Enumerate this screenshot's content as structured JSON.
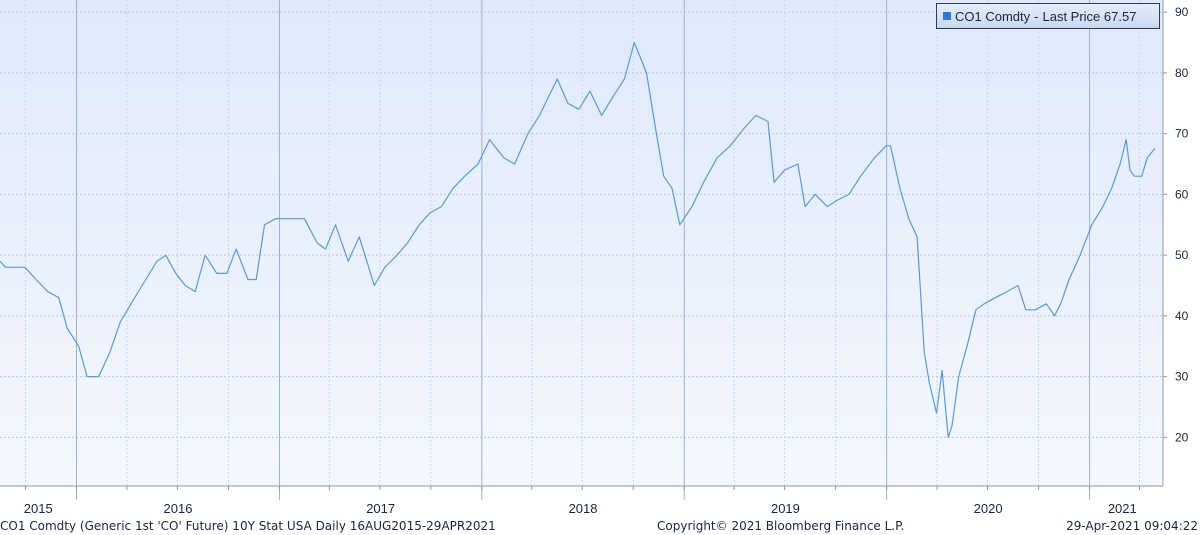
{
  "legend": {
    "series": "CO1 Comdty",
    "sep": "-",
    "label": "Last Price",
    "value": "67.57",
    "color": "#2f76d8"
  },
  "footer": {
    "left": "CO1 Comdty (Generic 1st 'CO' Future) 10Y Stat USA  Daily 16AUG2015-29APR2021",
    "center": "Copyright© 2021 Bloomberg Finance L.P.",
    "right": "29-Apr-2021 09:04:22"
  },
  "chart_data": {
    "type": "line",
    "title": "",
    "xlabel": "",
    "ylabel": "",
    "x_range": [
      "2015-08-16",
      "2021-04-29"
    ],
    "ylim": [
      12,
      92
    ],
    "y_ticks": [
      20,
      30,
      40,
      50,
      60,
      70,
      80,
      90
    ],
    "x_tick_labels": [
      "2015",
      "2016",
      "2017",
      "2018",
      "2019",
      "2020",
      "2021"
    ],
    "grid": true,
    "legend_position": "top-right",
    "line_color": "#5b9bd5",
    "series": [
      {
        "name": "CO1 Comdty - Last Price",
        "x": [
          "2015-08-16",
          "2015-08-26",
          "2015-09-10",
          "2015-09-30",
          "2015-10-20",
          "2015-11-10",
          "2015-11-30",
          "2015-12-15",
          "2016-01-05",
          "2016-01-20",
          "2016-02-10",
          "2016-03-01",
          "2016-03-20",
          "2016-04-15",
          "2016-05-05",
          "2016-05-25",
          "2016-06-10",
          "2016-06-28",
          "2016-07-15",
          "2016-08-02",
          "2016-08-20",
          "2016-09-10",
          "2016-09-28",
          "2016-10-15",
          "2016-11-05",
          "2016-11-20",
          "2016-12-05",
          "2016-12-25",
          "2017-01-20",
          "2017-02-15",
          "2017-03-10",
          "2017-03-25",
          "2017-04-12",
          "2017-05-05",
          "2017-05-25",
          "2017-06-21",
          "2017-07-10",
          "2017-08-01",
          "2017-08-20",
          "2017-09-10",
          "2017-09-30",
          "2017-10-20",
          "2017-11-10",
          "2017-12-01",
          "2017-12-25",
          "2018-01-15",
          "2018-02-10",
          "2018-03-01",
          "2018-03-25",
          "2018-04-15",
          "2018-05-17",
          "2018-06-05",
          "2018-06-25",
          "2018-07-15",
          "2018-08-05",
          "2018-08-25",
          "2018-09-15",
          "2018-10-03",
          "2018-10-25",
          "2018-11-10",
          "2018-11-25",
          "2018-12-10",
          "2018-12-24",
          "2019-01-15",
          "2019-02-05",
          "2019-03-01",
          "2019-03-25",
          "2019-04-20",
          "2019-05-10",
          "2019-06-01",
          "2019-06-12",
          "2019-07-01",
          "2019-07-25",
          "2019-08-07",
          "2019-08-25",
          "2019-09-16",
          "2019-10-03",
          "2019-10-25",
          "2019-11-15",
          "2019-12-10",
          "2019-12-31",
          "2020-01-08",
          "2020-01-25",
          "2020-02-10",
          "2020-02-25",
          "2020-03-09",
          "2020-03-18",
          "2020-03-31",
          "2020-04-10",
          "2020-04-21",
          "2020-04-28",
          "2020-05-10",
          "2020-05-25",
          "2020-06-10",
          "2020-06-25",
          "2020-07-15",
          "2020-08-05",
          "2020-08-25",
          "2020-09-08",
          "2020-09-25",
          "2020-10-15",
          "2020-10-30",
          "2020-11-10",
          "2020-11-25",
          "2020-12-15",
          "2021-01-05",
          "2021-01-25",
          "2021-02-10",
          "2021-02-25",
          "2021-03-08",
          "2021-03-15",
          "2021-03-23",
          "2021-04-05",
          "2021-04-15",
          "2021-04-29"
        ],
        "y": [
          49,
          48,
          48,
          48,
          46,
          44,
          43,
          38,
          35,
          30,
          30,
          34,
          39,
          43,
          46,
          49,
          50,
          47,
          45,
          44,
          50,
          47,
          47,
          51,
          46,
          46,
          55,
          56,
          56,
          56,
          52,
          51,
          55,
          49,
          53,
          45,
          48,
          50,
          52,
          55,
          57,
          58,
          61,
          63,
          65,
          69,
          66,
          65,
          70,
          73,
          79,
          75,
          74,
          77,
          73,
          76,
          79,
          85,
          80,
          71,
          63,
          61,
          55,
          58,
          62,
          66,
          68,
          71,
          73,
          72,
          62,
          64,
          65,
          58,
          60,
          58,
          59,
          60,
          63,
          66,
          68,
          68,
          61,
          56,
          53,
          34,
          29,
          24,
          31,
          20,
          22,
          30,
          35,
          41,
          42,
          43,
          44,
          45,
          41,
          41,
          42,
          40,
          42,
          46,
          50,
          55,
          58,
          61,
          65,
          69,
          64,
          63,
          63,
          66,
          67.57
        ]
      }
    ]
  }
}
